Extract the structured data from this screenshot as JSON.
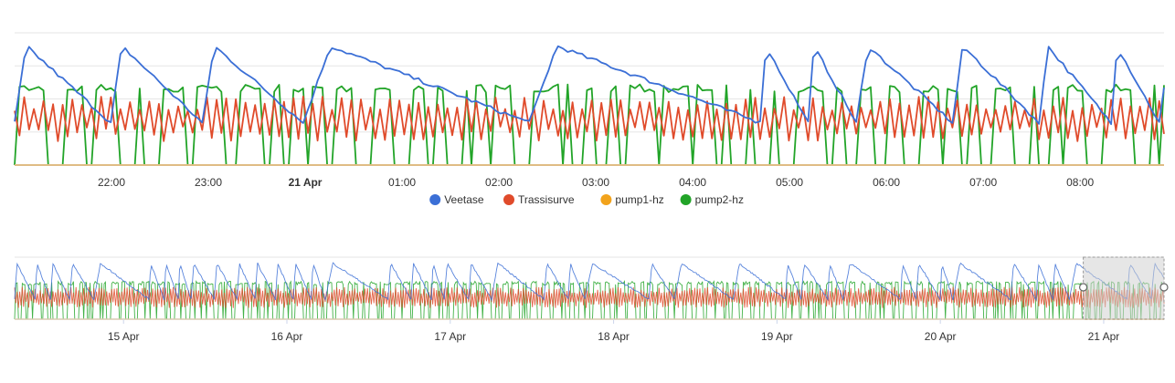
{
  "chart_data": [
    {
      "type": "line",
      "x_axis": {
        "type": "datetime",
        "range": [
          "2023-04-20T21:00",
          "2023-04-21T08:52"
        ],
        "ticks": [
          {
            "t": "2023-04-20T22:00",
            "label": "22:00"
          },
          {
            "t": "2023-04-20T23:00",
            "label": "23:00"
          },
          {
            "t": "2023-04-21T00:00",
            "label": "21 Apr",
            "bold": true
          },
          {
            "t": "2023-04-21T01:00",
            "label": "01:00"
          },
          {
            "t": "2023-04-21T02:00",
            "label": "02:00"
          },
          {
            "t": "2023-04-21T03:00",
            "label": "03:00"
          },
          {
            "t": "2023-04-21T04:00",
            "label": "04:00"
          },
          {
            "t": "2023-04-21T05:00",
            "label": "05:00"
          },
          {
            "t": "2023-04-21T06:00",
            "label": "06:00"
          },
          {
            "t": "2023-04-21T07:00",
            "label": "07:00"
          },
          {
            "t": "2023-04-21T08:00",
            "label": "08:00"
          }
        ]
      },
      "ylim": [
        0,
        100
      ],
      "grid": true,
      "legend": "bottom-center",
      "series": [
        {
          "name": "Veetase",
          "color": "#3b6fd6",
          "pattern": "sawtooth",
          "min": 32,
          "max": 90
        },
        {
          "name": "Trassisurve",
          "color": "#e04b2b",
          "pattern": "zigzag",
          "min": 18,
          "max": 52
        },
        {
          "name": "pump1-hz",
          "color": "#f2a31c",
          "pattern": "flat",
          "level": 0
        },
        {
          "name": "pump2-hz",
          "color": "#22a428",
          "pattern": "square",
          "low": 0,
          "high": 61
        }
      ]
    },
    {
      "type": "line",
      "role": "navigator",
      "x_axis": {
        "type": "datetime",
        "range": [
          "2023-04-14T08:00",
          "2023-04-21T08:52"
        ],
        "ticks": [
          {
            "t": "2023-04-15T00:00",
            "label": "15 Apr"
          },
          {
            "t": "2023-04-16T00:00",
            "label": "16 Apr"
          },
          {
            "t": "2023-04-17T00:00",
            "label": "17 Apr"
          },
          {
            "t": "2023-04-18T00:00",
            "label": "18 Apr"
          },
          {
            "t": "2023-04-19T00:00",
            "label": "19 Apr"
          },
          {
            "t": "2023-04-20T00:00",
            "label": "20 Apr"
          },
          {
            "t": "2023-04-21T00:00",
            "label": "21 Apr"
          }
        ]
      },
      "selection": [
        "2023-04-20T21:00",
        "2023-04-21T08:52"
      ]
    }
  ]
}
